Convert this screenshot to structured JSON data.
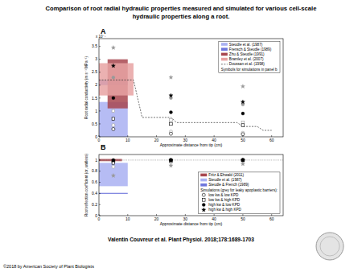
{
  "title": [
    "Comparison of root radial hydraulic properties measured and simulated for various cell-scale",
    "hydraulic properties along a root."
  ],
  "citation": "Valentin Couvreur et al. Plant Physiol. 2018;178:1689-1703",
  "copyright": "©2018 by American Society of Plant Biologists",
  "chart_data": [
    {
      "type": "scatter",
      "panel": "A",
      "x_label": "Approximate distance from tip (cm)",
      "y_label": "Root radial conductivity (m s⁻¹ MPa⁻¹)",
      "y_multiplier": "x 10⁻⁷",
      "xlim": [
        0,
        64
      ],
      "xticks": [
        0,
        10,
        20,
        30,
        40,
        50,
        60
      ],
      "ylim": [
        0,
        3.8
      ],
      "yticks": [
        0,
        0.5,
        1,
        1.5,
        2,
        2.5,
        3,
        3.5
      ],
      "legend": "upper right",
      "legend_note": "Symbols for simulations in panel b",
      "series": [
        {
          "name": "Steudle et al. (1987)",
          "type": "range",
          "color": "#a9b0f2",
          "x": [
            0,
            10
          ],
          "values": [
            0,
            1.35
          ]
        },
        {
          "name": "Frensch & Steudle (1989)",
          "type": "range",
          "color": "#6e76dc",
          "x": [
            0,
            10
          ],
          "values": [
            2.0,
            2.2
          ]
        },
        {
          "name": "Zhu & Steudle (1991)",
          "type": "range",
          "color": "#a8474f",
          "x": [
            3,
            10
          ],
          "values": [
            1.1,
            3.0
          ]
        },
        {
          "name": "Bramley et al. (2007)",
          "type": "range",
          "color": "#e8a3a3",
          "x": [
            0,
            12
          ],
          "values": [
            1.6,
            2.85
          ]
        },
        {
          "name": "Doussan et al. (1998)",
          "type": "line",
          "color": "#333333",
          "line_style": "dashed",
          "x": [
            0,
            12,
            15,
            25,
            27,
            48,
            50,
            55,
            57,
            60
          ],
          "values": [
            2.2,
            2.2,
            0.75,
            0.75,
            0.55,
            0.55,
            0.4,
            0.4,
            0.25,
            0.25
          ]
        },
        {
          "type": "scatter",
          "marker": "circle-open",
          "color": "#999999",
          "x": [
            5,
            25,
            50
          ],
          "values": [
            0.45,
            0.2,
            0.15
          ]
        },
        {
          "type": "scatter",
          "marker": "square-open",
          "color": "#999999",
          "x": [
            5,
            25,
            50
          ],
          "values": [
            1.0,
            0.65,
            0.55
          ]
        },
        {
          "type": "scatter",
          "marker": "circle",
          "color": "#999999",
          "x": [
            5,
            25,
            50
          ],
          "values": [
            2.3,
            1.5,
            1.25
          ]
        },
        {
          "type": "scatter",
          "marker": "star",
          "color": "#999999",
          "x": [
            5,
            25,
            50
          ],
          "values": [
            3.45,
            2.3,
            1.95
          ]
        },
        {
          "type": "scatter",
          "marker": "circle-open",
          "color": "#000000",
          "x": [
            5,
            25,
            50
          ],
          "values": [
            0.3,
            0.12,
            0.1
          ]
        },
        {
          "type": "scatter",
          "marker": "square-open",
          "color": "#000000",
          "x": [
            5,
            25,
            50
          ],
          "values": [
            0.7,
            0.5,
            0.45
          ]
        },
        {
          "type": "scatter",
          "marker": "circle",
          "color": "#000000",
          "x": [
            5,
            25,
            50
          ],
          "values": [
            1.5,
            0.95,
            0.9
          ]
        },
        {
          "type": "scatter",
          "marker": "star",
          "color": "#000000",
          "x": [
            5,
            25,
            50
          ],
          "values": [
            2.75,
            1.6,
            1.35
          ]
        }
      ]
    },
    {
      "type": "scatter",
      "panel": "B",
      "x_label": "Approximate distance from tip (cm)",
      "y_label": "Root reflection coefficient (σr, unitless)",
      "xlim": [
        0,
        64
      ],
      "xticks": [
        0,
        10,
        20,
        30,
        40,
        50,
        60
      ],
      "ylim": [
        0,
        1.1
      ],
      "yticks": [
        0,
        0.2,
        0.4,
        0.6,
        0.8,
        1
      ],
      "legend": "lower right",
      "legend_note": "Simulations (grey for leaky apoplastic barriers):",
      "reference_line": 1,
      "series": [
        {
          "name": "Fritz & Ehwald (2011)",
          "type": "range",
          "color": "#a8474f",
          "x": [
            0,
            8
          ],
          "values": [
            0.98,
            1.02
          ]
        },
        {
          "name": "Steudle et al. (1987)",
          "type": "range",
          "color": "#a9b0f2",
          "x": [
            0,
            10
          ],
          "values": [
            0.53,
            0.95
          ]
        },
        {
          "name": "Steudle & French (1989)",
          "type": "range",
          "color": "#6e76dc",
          "x": [
            0,
            10
          ],
          "values": [
            0.39,
            0.41
          ]
        },
        {
          "type": "scatter",
          "marker": "circle-open",
          "color": "#999999",
          "x": [
            5,
            25,
            50
          ],
          "values": [
            0.88,
            0.96,
            0.98
          ]
        },
        {
          "type": "scatter",
          "marker": "star",
          "color": "#999999",
          "x": [
            5,
            25,
            50
          ],
          "values": [
            0.72,
            0.9,
            0.93
          ]
        },
        {
          "name": "low kw & low KPD",
          "type": "scatter",
          "marker": "circle-open",
          "color": "#000000",
          "x": [
            5,
            25,
            50
          ],
          "values": [
            0.97,
            1.0,
            1.0
          ]
        },
        {
          "name": "low kw & high KPD",
          "type": "scatter",
          "marker": "square-open",
          "color": "#000000",
          "x": [
            5,
            25,
            50
          ],
          "values": [
            0.95,
            0.99,
            1.0
          ]
        },
        {
          "name": "high kw & low KPD",
          "type": "scatter",
          "marker": "circle",
          "color": "#000000",
          "x": [
            5,
            25,
            50
          ],
          "values": [
            1.0,
            1.0,
            1.0
          ]
        },
        {
          "name": "high kw & high KPD",
          "type": "scatter",
          "marker": "star",
          "color": "#000000",
          "x": [
            5,
            25,
            50
          ],
          "values": [
            0.99,
            1.0,
            1.0
          ]
        }
      ]
    }
  ]
}
